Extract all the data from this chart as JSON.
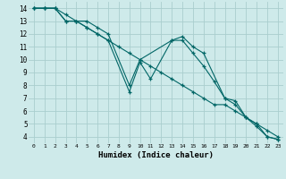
{
  "xlabel": "Humidex (Indice chaleur)",
  "xlim": [
    -0.5,
    23.5
  ],
  "ylim": [
    3.5,
    14.5
  ],
  "xtick_vals": [
    0,
    1,
    2,
    3,
    4,
    5,
    6,
    7,
    8,
    9,
    10,
    11,
    12,
    13,
    14,
    15,
    16,
    17,
    18,
    19,
    20,
    21,
    22,
    23
  ],
  "ytick_vals": [
    4,
    5,
    6,
    7,
    8,
    9,
    10,
    11,
    12,
    13,
    14
  ],
  "background_color": "#ceeaea",
  "grid_color": "#aacece",
  "line_color": "#006666",
  "line1_x": [
    0,
    1,
    2,
    3,
    4,
    5,
    6,
    7,
    9,
    10,
    13,
    14,
    15,
    16,
    18,
    19,
    20,
    21,
    22,
    23
  ],
  "line1_y": [
    14,
    14,
    14,
    13,
    13,
    13,
    12.5,
    12,
    8,
    10,
    11.5,
    11.8,
    11,
    10.5,
    7,
    6.5,
    5.5,
    5.0,
    4.0,
    3.8
  ],
  "line2_x": [
    0,
    1,
    2,
    3,
    4,
    5,
    6,
    7,
    9,
    10,
    11,
    13,
    14,
    15,
    16,
    17,
    18,
    19,
    20,
    21,
    22,
    23
  ],
  "line2_y": [
    14,
    14,
    14,
    13,
    13,
    12.5,
    12,
    11.5,
    7.5,
    9.8,
    8.5,
    11.5,
    11.5,
    10.5,
    9.5,
    8.3,
    7.0,
    6.8,
    5.5,
    4.8,
    4.0,
    3.8
  ],
  "line3_x": [
    0,
    1,
    2,
    3,
    4,
    5,
    6,
    7,
    8,
    9,
    10,
    11,
    12,
    13,
    14,
    15,
    16,
    17,
    18,
    19,
    20,
    21,
    22,
    23
  ],
  "line3_y": [
    14,
    14,
    14,
    13.5,
    13,
    12.5,
    12,
    11.5,
    11,
    10.5,
    10,
    9.5,
    9,
    8.5,
    8,
    7.5,
    7,
    6.5,
    6.5,
    6,
    5.5,
    5,
    4.5,
    4
  ]
}
